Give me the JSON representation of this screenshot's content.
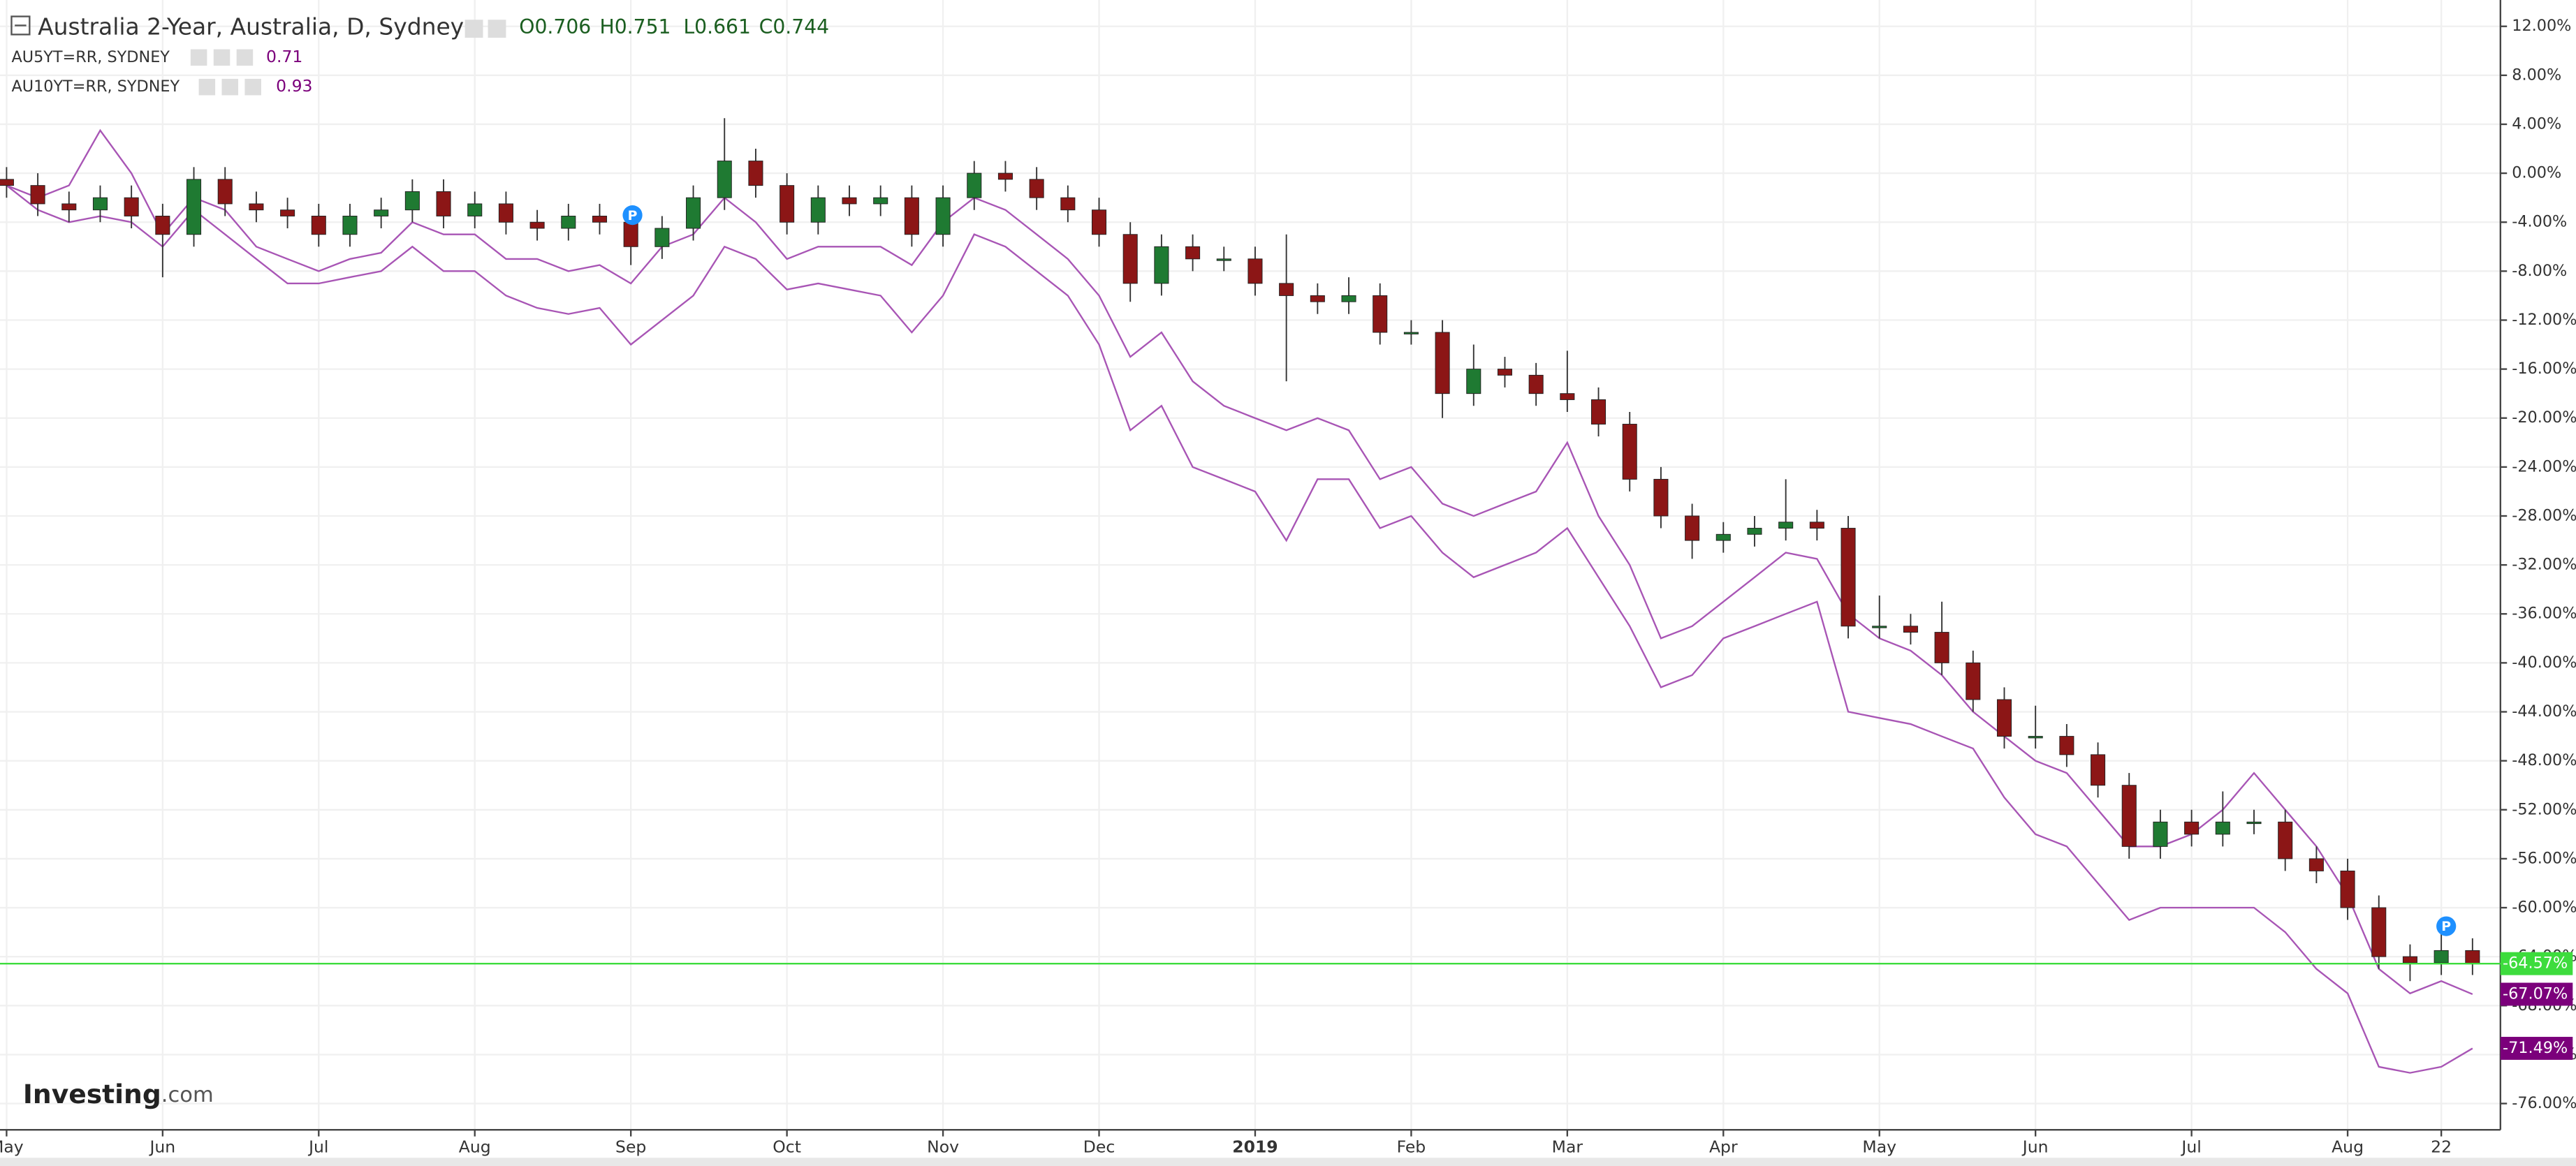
{
  "chart_data": {
    "type": "candlestick",
    "title": "Australia 2-Year, Australia, D, Sydney",
    "ohlc_text": [
      "O0.706",
      "H0.751",
      "L0.661",
      "C0.744"
    ],
    "logo": [
      "Investing",
      ".com"
    ],
    "events": [
      "P",
      "P"
    ],
    "categories": [
      "May",
      null,
      null,
      null,
      null,
      "Jun",
      null,
      null,
      null,
      null,
      "Jul",
      null,
      null,
      null,
      null,
      "Aug",
      null,
      null,
      null,
      null,
      "Sep",
      null,
      null,
      null,
      null,
      "Oct",
      null,
      null,
      null,
      null,
      "Nov",
      null,
      null,
      null,
      null,
      "Dec",
      null,
      null,
      null,
      null,
      "2019",
      null,
      null,
      null,
      null,
      "Feb",
      null,
      null,
      null,
      null,
      "Mar",
      null,
      null,
      null,
      null,
      "Apr",
      null,
      null,
      null,
      null,
      "May",
      null,
      null,
      null,
      null,
      "Jun",
      null,
      null,
      null,
      null,
      "Jul",
      null,
      null,
      null,
      null,
      "Aug",
      null,
      null,
      "22",
      null
    ],
    "open": [
      -0.5,
      -1,
      -2.5,
      -3,
      -2,
      -3.5,
      -5,
      -0.5,
      -2.5,
      -3,
      -3.5,
      -5,
      -3.5,
      -3,
      -1.5,
      -3.5,
      -2.5,
      -4,
      -4.5,
      -3.5,
      -4,
      -6,
      -4.5,
      -2,
      1,
      -1,
      -4,
      -2,
      -2.5,
      -2,
      -5,
      -2,
      0,
      -0.5,
      -2,
      -3,
      -5,
      -9,
      -6,
      -7,
      -7,
      -9,
      -10,
      -10.5,
      -10,
      -13,
      -13,
      -18,
      -16,
      -16.5,
      -18,
      -18.5,
      -20.5,
      -25,
      -28,
      -30,
      -29.5,
      -29,
      -28.5,
      -29,
      -37,
      -37,
      -37.5,
      -40,
      -43,
      -46,
      -46,
      -47.5,
      -50,
      -55,
      -53,
      -54,
      -53,
      -53,
      -56,
      -57,
      -60,
      -64,
      -64.5,
      -63.5
    ],
    "high": [
      0.5,
      0,
      -1.5,
      -1,
      -1,
      -2.5,
      0.5,
      0.5,
      -1.5,
      -2,
      -2.5,
      -2.5,
      -2,
      -0.5,
      -0.5,
      -1.5,
      -1.5,
      -3,
      -2.5,
      -2.5,
      -3,
      -3.5,
      -1,
      4.5,
      2,
      0,
      -1,
      -1,
      -1,
      -1,
      -1,
      1,
      1,
      0.5,
      -1,
      -2,
      -4,
      -5,
      -5,
      -6,
      -6,
      -5,
      -9,
      -8.5,
      -9,
      -12,
      -12,
      -14,
      -15,
      -15.5,
      -14.5,
      -17.5,
      -19.5,
      -24,
      -27,
      -28.5,
      -28,
      -25,
      -27.5,
      -28,
      -34.5,
      -36,
      -35,
      -39,
      -42,
      -43.5,
      -45,
      -46.5,
      -49,
      -52,
      -52,
      -50.5,
      -52,
      -52,
      -55,
      -56,
      -59,
      -63,
      -62,
      -62.5
    ],
    "low": [
      -2,
      -3.5,
      -4,
      -4,
      -4.5,
      -8.5,
      -6,
      -3.5,
      -4,
      -4.5,
      -6,
      -6,
      -4.5,
      -4,
      -4.5,
      -4.5,
      -5,
      -5.5,
      -5.5,
      -5,
      -7.5,
      -7,
      -5.5,
      -3,
      -2,
      -5,
      -5,
      -3.5,
      -3.5,
      -6,
      -6,
      -3,
      -1.5,
      -3,
      -4,
      -6,
      -10.5,
      -10,
      -8,
      -8,
      -10,
      -17,
      -11.5,
      -11.5,
      -14,
      -14,
      -20,
      -19,
      -17.5,
      -19,
      -19.5,
      -21.5,
      -26,
      -29,
      -31.5,
      -31,
      -30.5,
      -30,
      -30,
      -38,
      -38,
      -38.5,
      -41,
      -44,
      -47,
      -47,
      -48.5,
      -51,
      -56,
      -56,
      -55,
      -55,
      -54,
      -57,
      -58,
      -61,
      -65,
      -66,
      -65.5,
      -65.5
    ],
    "close": [
      -1,
      -2.5,
      -3,
      -2,
      -3.5,
      -5,
      -0.5,
      -2.5,
      -3,
      -3.5,
      -5,
      -3.5,
      -3,
      -1.5,
      -3.5,
      -2.5,
      -4,
      -4.5,
      -3.5,
      -4,
      -6,
      -4.5,
      -2,
      1,
      -1,
      -4,
      -2,
      -2.5,
      -2,
      -5,
      -2,
      0,
      -0.5,
      -2,
      -3,
      -5,
      -9,
      -6,
      -7,
      -7,
      -9,
      -10,
      -10.5,
      -10,
      -13,
      -13,
      -18,
      -16,
      -16.5,
      -18,
      -18.5,
      -20.5,
      -25,
      -28,
      -30,
      -29.5,
      -29,
      -28.5,
      -29,
      -37,
      -37,
      -37.5,
      -40,
      -43,
      -46,
      -46,
      -47.5,
      -50,
      -55,
      -53,
      -54,
      -53,
      -53,
      -56,
      -57,
      -60,
      -64,
      -64.5,
      -63.5,
      -64.57
    ],
    "up_color": "#1f7a32",
    "down_color": "#8c1616",
    "last_color": "#3ddc3d",
    "last_value_label": "-64.57%",
    "series": [
      {
        "name": "AU5YT=RR, SYDNEY",
        "legend_value": "0.71",
        "color": "#a855b5",
        "label_color": "#7b007b",
        "last_value_label": "-67.07%",
        "values": [
          -1,
          -2,
          -1,
          3.5,
          0,
          -5,
          -2,
          -3,
          -6,
          -7,
          -8,
          -7,
          -6.5,
          -4,
          -5,
          -5,
          -7,
          -7,
          -8,
          -7.5,
          -9,
          -6,
          -5,
          -2,
          -4,
          -7,
          -6,
          -6,
          -6,
          -7.5,
          -4,
          -2,
          -3,
          -5,
          -7,
          -10,
          -15,
          -13,
          -17,
          -19,
          -20,
          -21,
          -20,
          -21,
          -25,
          -24,
          -27,
          -28,
          -27,
          -26,
          -22,
          -28,
          -32,
          -38,
          -37,
          -35,
          -33,
          -31,
          -31.5,
          -36,
          -38,
          -39,
          -41,
          -44,
          -46,
          -48,
          -49,
          -52,
          -55,
          -55,
          -54,
          -52,
          -49,
          -52,
          -55,
          -59,
          -65,
          -67,
          -66,
          -67.07
        ]
      },
      {
        "name": "AU10YT=RR, SYDNEY",
        "legend_value": "0.93",
        "color": "#a855b5",
        "label_color": "#7b007b",
        "last_value_label": "-71.49%",
        "values": [
          -1,
          -3,
          -4,
          -3.5,
          -4,
          -6,
          -3,
          -5,
          -7,
          -9,
          -9,
          -8.5,
          -8,
          -6,
          -8,
          -8,
          -10,
          -11,
          -11.5,
          -11,
          -14,
          -12,
          -10,
          -6,
          -7,
          -9.5,
          -9,
          -9.5,
          -10,
          -13,
          -10,
          -5,
          -6,
          -8,
          -10,
          -14,
          -21,
          -19,
          -24,
          -25,
          -26,
          -30,
          -25,
          -25,
          -29,
          -28,
          -31,
          -33,
          -32,
          -31,
          -29,
          -33,
          -37,
          -42,
          -41,
          -38,
          -37,
          -36,
          -35,
          -44,
          -44.5,
          -45,
          -46,
          -47,
          -51,
          -54,
          -55,
          -58,
          -61,
          -60,
          -60,
          -60,
          -60,
          -62,
          -65,
          -67,
          -73,
          -73.5,
          -73,
          -71.49
        ]
      }
    ],
    "ylim": [
      -78.15,
      14.15
    ],
    "yticks": [
      {
        "value": 12,
        "label": "12.00%"
      },
      {
        "value": 8,
        "label": "8.00%"
      },
      {
        "value": 4,
        "label": "4.00%"
      },
      {
        "value": 0,
        "label": "0.00%"
      },
      {
        "value": -4,
        "label": "-4.00%"
      },
      {
        "value": -8,
        "label": "-8.00%"
      },
      {
        "value": -12,
        "label": "-12.00%"
      },
      {
        "value": -16,
        "label": "-16.00%"
      },
      {
        "value": -20,
        "label": "-20.00%"
      },
      {
        "value": -24,
        "label": "-24.00%"
      },
      {
        "value": -28,
        "label": "-28.00%"
      },
      {
        "value": -32,
        "label": "-32.00%"
      },
      {
        "value": -36,
        "label": "-36.00%"
      },
      {
        "value": -40,
        "label": "-40.00%"
      },
      {
        "value": -44,
        "label": "-44.00%"
      },
      {
        "value": -48,
        "label": "-48.00%"
      },
      {
        "value": -52,
        "label": "-52.00%"
      },
      {
        "value": -56,
        "label": "-56.00%"
      },
      {
        "value": -60,
        "label": "-60.00%"
      },
      {
        "value": -64,
        "label": "-64.00%"
      },
      {
        "value": -68,
        "label": "-68.00%"
      },
      {
        "value": -72,
        "label": "-72.00%"
      },
      {
        "value": -76,
        "label": "-76.00%"
      }
    ],
    "grid": true
  }
}
